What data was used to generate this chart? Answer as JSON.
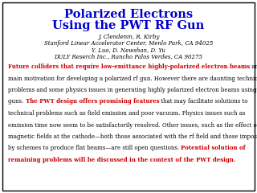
{
  "title_line1": "Polarized Electrons",
  "title_line2": "Using the PWT RF Gun",
  "title_color": "#0000CC",
  "author_line1": "J. Clendenin, R. Kirby",
  "author_line2": "Stanford Linear Accelerator Center, Menlo Park, CA 94025",
  "author_line3": "Y. Luo, D. Newshan, D. Yu",
  "author_line4": "DULY Reserch Inc., Rancho Palos Verdes, CA 90275",
  "body_fontsize": 5.0,
  "body_lines": [
    [
      {
        "text": "Future colliders that require low-emittance highly-polarized electron beams",
        "color": "#CC0000",
        "bold": true
      },
      {
        "text": " are the",
        "color": "#000000",
        "bold": false
      }
    ],
    [
      {
        "text": "main motivation for developing a polarized rf gun. However there are daunting technical",
        "color": "#000000",
        "bold": false
      }
    ],
    [
      {
        "text": "problems and some physics issues in generating highly polarized electron beams using rf",
        "color": "#000000",
        "bold": false
      }
    ],
    [
      {
        "text": "guns. ",
        "color": "#000000",
        "bold": false
      },
      {
        "text": "The PWT design offers promising features",
        "color": "#CC0000",
        "bold": true
      },
      {
        "text": " that may facilitate solutions to",
        "color": "#000000",
        "bold": false
      }
    ],
    [
      {
        "text": "technical problems such as field emission and poor vacuum. Physics issues such as",
        "color": "#000000",
        "bold": false
      }
    ],
    [
      {
        "text": "emission time now seem to be satisfactorily resolved. Other issues, such as the effect of",
        "color": "#000000",
        "bold": false
      }
    ],
    [
      {
        "text": "magnetic fields at the cathode—both those associated with the rf field and those imposed",
        "color": "#000000",
        "bold": false
      }
    ],
    [
      {
        "text": "by schemes to produce flat beams—are still open questions. ",
        "color": "#000000",
        "bold": false
      },
      {
        "text": "Potential solution of",
        "color": "#CC0000",
        "bold": true
      }
    ],
    [
      {
        "text": "remaining problems will be discussed in the context of the PWT design.",
        "color": "#CC0000",
        "bold": true
      }
    ]
  ],
  "background_color": "#FFFFFF",
  "border_color": "#000000",
  "title_fontsize": 10.5,
  "author_fontsize": 5.0
}
